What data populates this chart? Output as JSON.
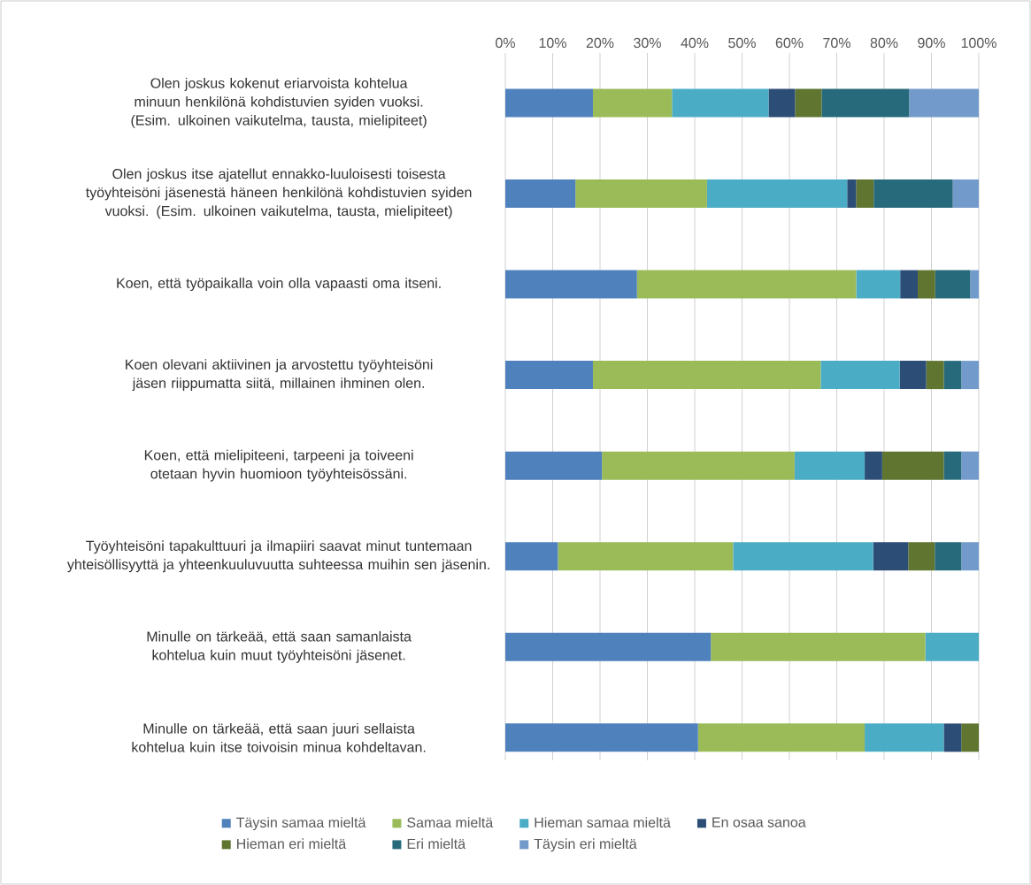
{
  "chart_data": {
    "type": "bar",
    "orientation": "horizontal",
    "stacked": true,
    "categories": [
      "Olen joskus kokenut eriarvoista kohtelua minuun henkilönä kohdistuvien syiden vuoksi. (Esim. ulkoinen vaikutelma, tausta, mielipiteet)",
      "Olen joskus itse ajatellut ennakko-luuloisesti toisesta työyhteisöni jäsenestä häneen henkilönä kohdistuvien syiden vuoksi. (Esim. ulkoinen vaikutelma, tausta, mielipiteet)",
      "Koen, että työpaikalla voin olla vapaasti oma itseni.",
      "Koen olevani aktiivinen ja arvostettu työyhteisöni jäsen riippumatta siitä, millainen ihminen olen.",
      "Koen, että mielipiteeni, tarpeeni ja toiveeni otetaan hyvin huomioon työyhteisössäni.",
      "Työyhteisöni tapakulttuuri ja ilmapiiri saavat minut tuntemaan yhteisöllisyyttä ja yhteenkuuluvuutta suhteessa muihin sen jäsenin.",
      "Minulle on tärkeää, että saan samanlaista kohtelua kuin muut työyhteisöni jäsenet.",
      "Minulle on tärkeää, että saan juuri sellaista kohtelua kuin itse toivoisin minua kohdeltavan."
    ],
    "series": [
      {
        "name": "Täysin samaa mieltä",
        "color": "#4f81bd",
        "values": [
          18.5,
          14.8,
          27.8,
          18.5,
          20.4,
          11.1,
          43.4,
          40.7
        ]
      },
      {
        "name": "Samaa mieltä",
        "color": "#9bbb59",
        "values": [
          16.7,
          27.8,
          46.3,
          48.1,
          40.7,
          37.0,
          45.3,
          35.2
        ]
      },
      {
        "name": "Hieman samaa mieltä",
        "color": "#4bacc6",
        "values": [
          20.4,
          29.6,
          9.3,
          16.7,
          14.8,
          29.6,
          11.3,
          16.7
        ]
      },
      {
        "name": "En osaa sanoa",
        "color": "#2c4d75",
        "values": [
          5.6,
          1.9,
          3.7,
          5.6,
          3.7,
          7.4,
          0,
          3.7
        ]
      },
      {
        "name": "Hieman eri mieltä",
        "color": "#5f7530",
        "values": [
          5.6,
          3.7,
          3.7,
          3.7,
          13.0,
          5.6,
          0,
          3.7
        ]
      },
      {
        "name": "Eri mieltä",
        "color": "#276a7c",
        "values": [
          18.5,
          16.7,
          7.4,
          3.7,
          3.7,
          5.6,
          0,
          0
        ]
      },
      {
        "name": "Täysin eri mieltä",
        "color": "#729aca",
        "values": [
          14.8,
          5.6,
          1.8,
          3.7,
          3.7,
          3.7,
          0,
          0
        ]
      }
    ],
    "xlim": [
      0,
      100
    ],
    "xticks": [
      {
        "value": 0,
        "label": "0%"
      },
      {
        "value": 10,
        "label": "10%"
      },
      {
        "value": 20,
        "label": "20%"
      },
      {
        "value": 30,
        "label": "30%"
      },
      {
        "value": 40,
        "label": "40%"
      },
      {
        "value": 50,
        "label": "50%"
      },
      {
        "value": 60,
        "label": "60%"
      },
      {
        "value": 70,
        "label": "70%"
      },
      {
        "value": 80,
        "label": "80%"
      },
      {
        "value": 90,
        "label": "90%"
      },
      {
        "value": 100,
        "label": "100%"
      }
    ],
    "grid": "x",
    "legend": "bottom"
  }
}
